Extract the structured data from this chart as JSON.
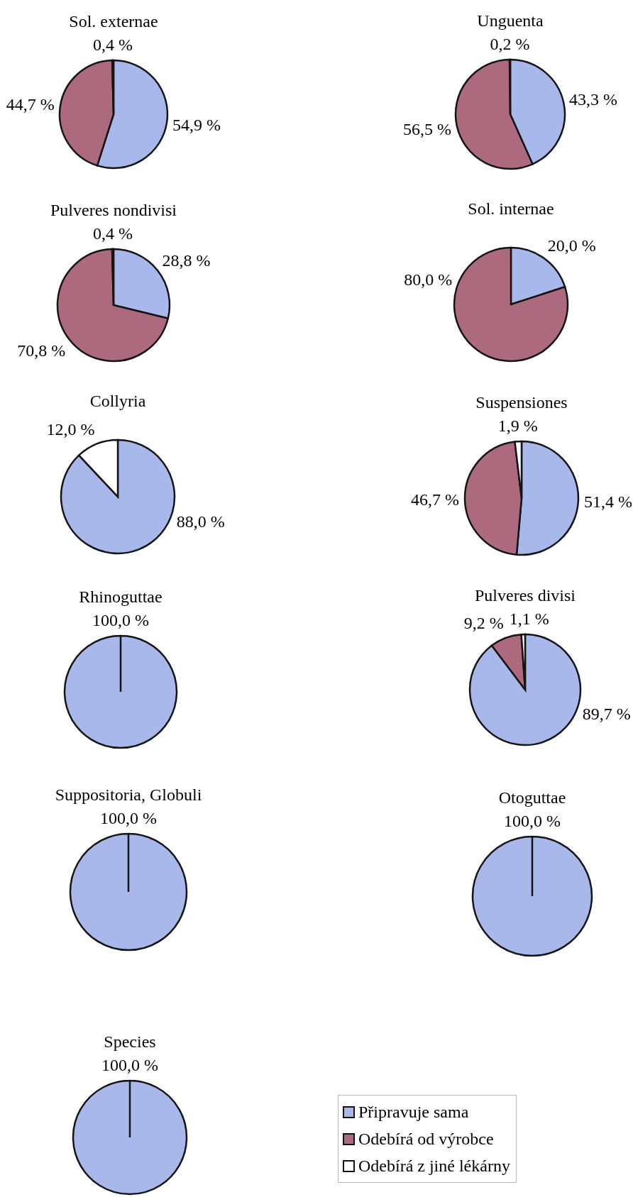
{
  "chart_data": [
    {
      "type": "pie",
      "title": "Sol. externae",
      "categories": [
        null,
        null,
        null
      ],
      "values": [
        54.9,
        44.7,
        0.4
      ],
      "colors": [
        "#a8b8ea",
        "#ad6a7e",
        "#ffffff"
      ],
      "value_labels": [
        "54,9 %",
        "44,7 %",
        "0,4 %"
      ]
    },
    {
      "type": "pie",
      "title": "Unguenta",
      "categories": [
        null,
        null,
        null
      ],
      "values": [
        43.3,
        56.5,
        0.2
      ],
      "colors": [
        "#a8b8ea",
        "#ad6a7e",
        "#ffffff"
      ],
      "value_labels": [
        "43,3 %",
        "56,5 %",
        "0,2 %"
      ]
    },
    {
      "type": "pie",
      "title": "Pulveres nondivisi",
      "categories": [
        null,
        null,
        null
      ],
      "values": [
        28.8,
        70.8,
        0.4
      ],
      "colors": [
        "#a8b8ea",
        "#ad6a7e",
        "#ffffff"
      ],
      "value_labels": [
        "28,8 %",
        "70,8 %",
        "0,4 %"
      ]
    },
    {
      "type": "pie",
      "title": "Sol. internae",
      "categories": [
        null,
        null,
        null
      ],
      "values": [
        20.0,
        80.0,
        0
      ],
      "colors": [
        "#a8b8ea",
        "#ad6a7e",
        "#ffffff"
      ],
      "value_labels": [
        "20,0 %",
        "80,0 %",
        null
      ]
    },
    {
      "type": "pie",
      "title": "Collyria",
      "categories": [
        null,
        null,
        null
      ],
      "values": [
        88.0,
        0,
        12.0
      ],
      "colors": [
        "#a8b8ea",
        "#ad6a7e",
        "#ffffff"
      ],
      "value_labels": [
        "88,0 %",
        null,
        "12,0 %"
      ]
    },
    {
      "type": "pie",
      "title": "Suspensiones",
      "categories": [
        null,
        null,
        null
      ],
      "values": [
        51.4,
        46.7,
        1.9
      ],
      "colors": [
        "#a8b8ea",
        "#ad6a7e",
        "#ffffff"
      ],
      "value_labels": [
        "51,4 %",
        "46,7 %",
        "1,9 %"
      ]
    },
    {
      "type": "pie",
      "title": "Rhinoguttae",
      "categories": [
        null,
        null,
        null
      ],
      "values": [
        100.0,
        0,
        0
      ],
      "colors": [
        "#a8b8ea",
        "#ad6a7e",
        "#ffffff"
      ],
      "value_labels": [
        "100,0 %",
        null,
        null
      ]
    },
    {
      "type": "pie",
      "title": "Pulveres divisi",
      "categories": [
        null,
        null,
        null
      ],
      "values": [
        89.7,
        9.2,
        1.1
      ],
      "colors": [
        "#a8b8ea",
        "#ad6a7e",
        "#ffffff"
      ],
      "value_labels": [
        "89,7 %",
        "9,2 %",
        "1,1 %"
      ]
    },
    {
      "type": "pie",
      "title": "Suppositoria, Globuli",
      "categories": [
        null,
        null,
        null
      ],
      "values": [
        100.0,
        0,
        0
      ],
      "colors": [
        "#a8b8ea",
        "#ad6a7e",
        "#ffffff"
      ],
      "value_labels": [
        "100,0 %",
        null,
        null
      ]
    },
    {
      "type": "pie",
      "title": "Otoguttae",
      "categories": [
        null,
        null,
        null
      ],
      "values": [
        100.0,
        0,
        0
      ],
      "colors": [
        "#a8b8ea",
        "#ad6a7e",
        "#ffffff"
      ],
      "value_labels": [
        "100,0 %",
        null,
        null
      ]
    },
    {
      "type": "pie",
      "title": "Species",
      "categories": [
        "Připravuje sama",
        "Odebírá od výrobce",
        "Odebírá z jiné lékárny"
      ],
      "values": [
        100.0,
        0,
        0
      ],
      "colors": [
        "#a8b8ea",
        "#ad6a7e",
        "#ffffff"
      ],
      "value_labels": [
        "100,0 %",
        null,
        null
      ],
      "legend": "right"
    }
  ]
}
